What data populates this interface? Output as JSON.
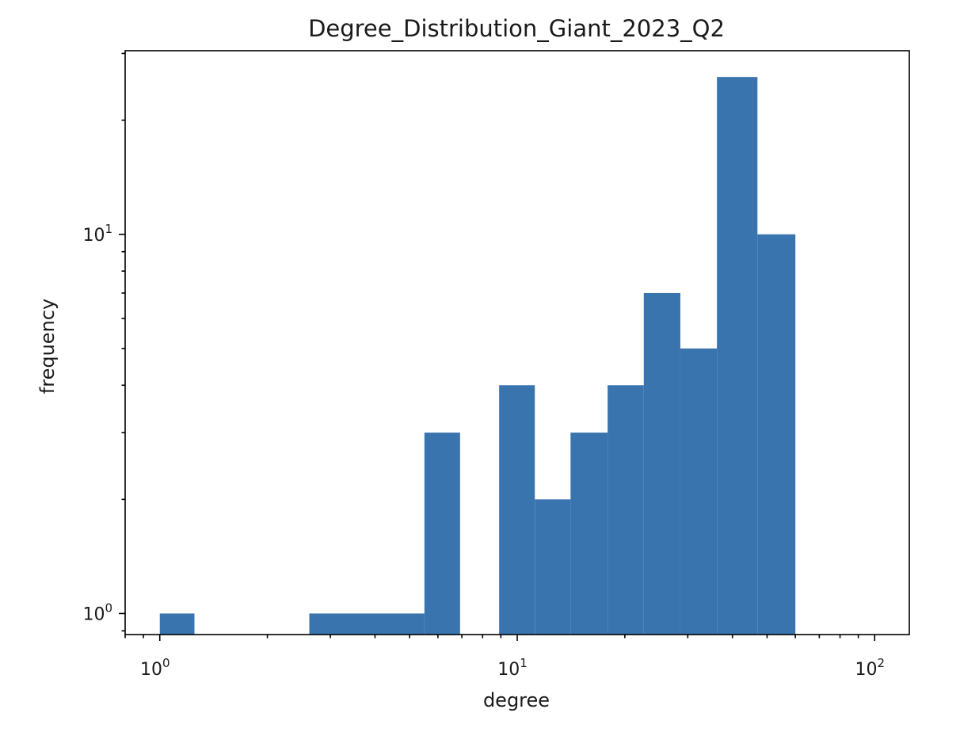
{
  "chart_data": {
    "type": "bar",
    "title": "Degree_Distribution_Giant_2023_Q2",
    "xlabel": "degree",
    "ylabel": "frequency",
    "xscale": "log",
    "yscale": "log",
    "xlim": [
      0.8,
      125
    ],
    "ylim": [
      0.88,
      30.5
    ],
    "grid": false,
    "bar_color": "#3a74ae",
    "bins": [
      {
        "x_start": 1.0,
        "x_end": 1.25,
        "count": 1
      },
      {
        "x_start": 2.62,
        "x_end": 5.5,
        "count": 1
      },
      {
        "x_start": 5.5,
        "x_end": 6.92,
        "count": 3
      },
      {
        "x_start": 8.9,
        "x_end": 11.2,
        "count": 4
      },
      {
        "x_start": 11.2,
        "x_end": 14.1,
        "count": 2
      },
      {
        "x_start": 14.1,
        "x_end": 17.9,
        "count": 3
      },
      {
        "x_start": 17.9,
        "x_end": 22.6,
        "count": 4
      },
      {
        "x_start": 22.6,
        "x_end": 28.6,
        "count": 7
      },
      {
        "x_start": 28.6,
        "x_end": 36.2,
        "count": 5
      },
      {
        "x_start": 36.2,
        "x_end": 47.0,
        "count": 26
      },
      {
        "x_start": 47.0,
        "x_end": 60.0,
        "count": 10
      }
    ],
    "x_major_ticks": [
      {
        "value": 1,
        "base": "10",
        "exp": "0"
      },
      {
        "value": 10,
        "base": "10",
        "exp": "1"
      },
      {
        "value": 100,
        "base": "10",
        "exp": "2"
      }
    ],
    "y_major_ticks": [
      {
        "value": 1,
        "base": "10",
        "exp": "0"
      },
      {
        "value": 10,
        "base": "10",
        "exp": "1"
      }
    ]
  }
}
